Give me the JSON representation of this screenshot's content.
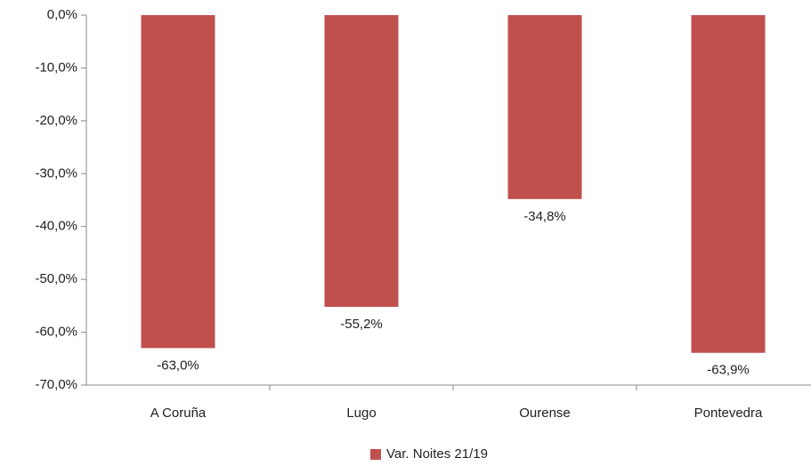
{
  "chart_data": {
    "type": "bar",
    "categories": [
      "A Coruña",
      "Lugo",
      "Ourense",
      "Pontevedra"
    ],
    "series": [
      {
        "name": "Var. Noites 21/19",
        "color": "#c0504d",
        "values": [
          -63.0,
          -55.2,
          -34.8,
          -63.9
        ],
        "value_labels": [
          "-63,0%",
          "-55,2%",
          "-34,8%",
          "-63,9%"
        ]
      }
    ],
    "ylim": [
      -70,
      0
    ],
    "yticks": [
      {
        "value": 0,
        "label": "0,0%"
      },
      {
        "value": -10,
        "label": "-10,0%"
      },
      {
        "value": -20,
        "label": "-20,0%"
      },
      {
        "value": -30,
        "label": "-30,0%"
      },
      {
        "value": -40,
        "label": "-40,0%"
      },
      {
        "value": -50,
        "label": "-50,0%"
      },
      {
        "value": -60,
        "label": "-60,0%"
      },
      {
        "value": -70,
        "label": "-70,0%"
      }
    ],
    "legend": "bottom"
  }
}
